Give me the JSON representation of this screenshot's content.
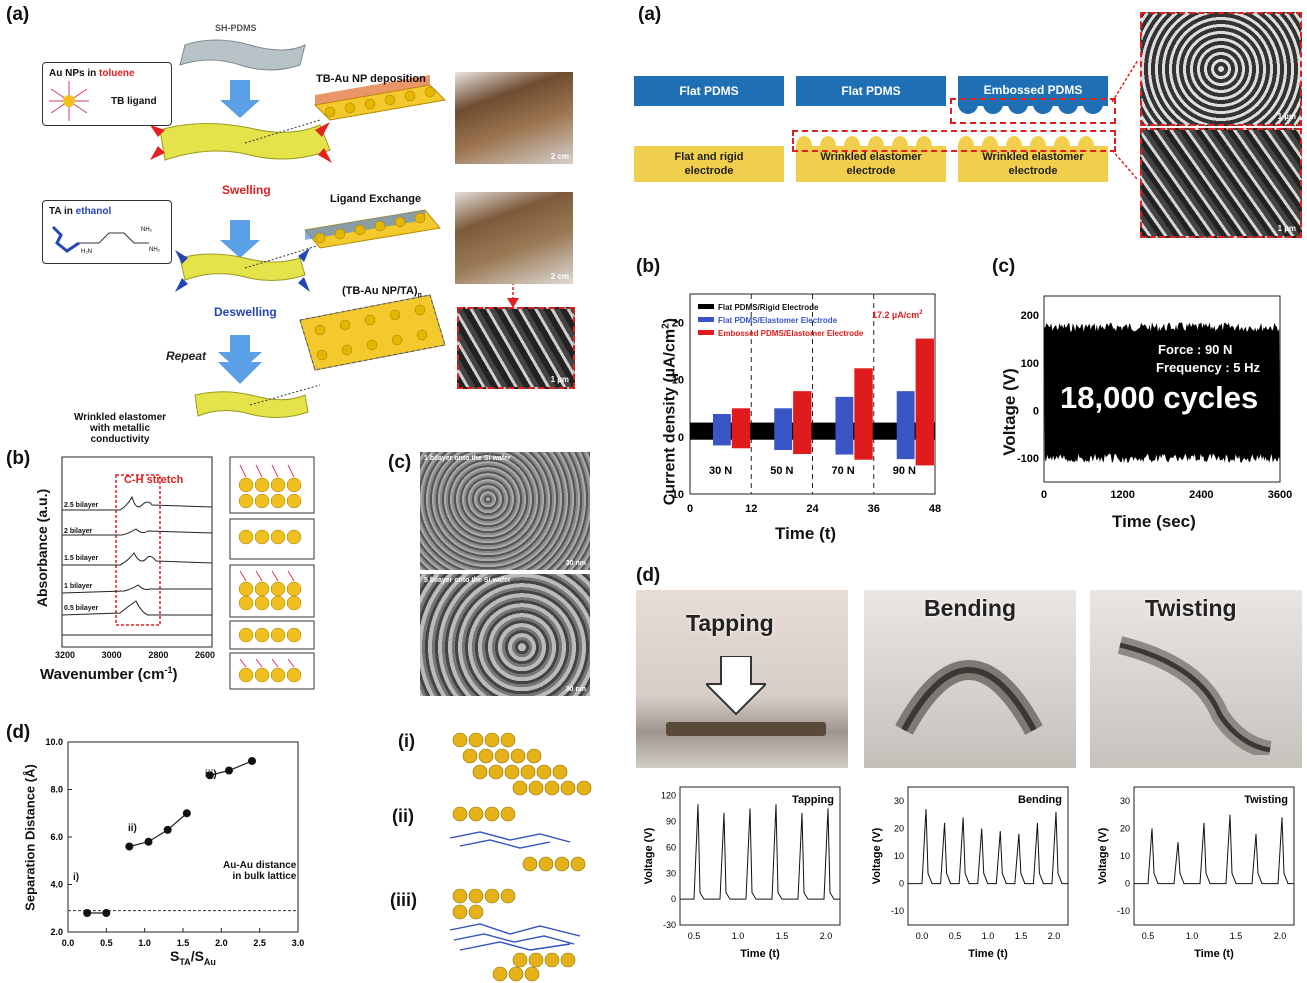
{
  "left": {
    "a": {
      "panel": "(a)",
      "sh_pdms": "SH-PDMS",
      "au_box": {
        "line1_a": "Au NPs in ",
        "line1_b": "toluene",
        "ligand": "TB ligand"
      },
      "tb_deposition": "TB-Au NP deposition",
      "swelling": "Swelling",
      "ta_box": {
        "line1_a": "TA in ",
        "line1_b": "ethanol"
      },
      "ligand_exchange": "Ligand Exchange",
      "deswelling": "Deswelling",
      "multilayer": "(TB-Au NP/TA)",
      "multilayer_sub": "n",
      "repeat": "Repeat",
      "wrinkled": "Wrinkled elastomer",
      "wrinkled2": "with metallic conductivity",
      "scale_2cm_1": "2 cm",
      "scale_2cm_2": "2 cm",
      "scale_1um": "1 µm"
    },
    "b": {
      "panel": "(b)",
      "ch_stretch": "C-H stretch",
      "ylabel": "Absorbance (a.u.)",
      "xlabel": "Wavenumber (cm",
      "xlabel_sup": "-1",
      "xlabel_end": ")",
      "ticks": [
        "3200",
        "3000",
        "2800",
        "2600"
      ],
      "bilayers": [
        "2.5 bilayer",
        "2 bilayer",
        "1.5 bilayer",
        "1 bilayer",
        "0.5 bilayer"
      ]
    },
    "c": {
      "panel": "(c)",
      "top_label": "1 bilayer onto the Si wafer",
      "bottom_label": "5 bilayer onto the Si wafer",
      "scale_top": "30 nm",
      "scale_bottom": "30 nm"
    },
    "d": {
      "panel": "(d)",
      "ylabel": "Separation Distance (Å)",
      "xlabel_main": "S",
      "xlabel_sub1": "TA",
      "xlabel_slash": "/S",
      "xlabel_sub2": "Au",
      "xticks": [
        "0.0",
        "0.5",
        "1.0",
        "1.5",
        "2.0",
        "2.5",
        "3.0"
      ],
      "yticks": [
        "2.0",
        "4.0",
        "6.0",
        "8.0",
        "10.0"
      ],
      "annot_line1": "Au-Au distance",
      "annot_line2": "in bulk lattice",
      "points_labels": [
        "i)",
        "ii)",
        "iii)"
      ],
      "lattice_labels": [
        "(i)",
        "(ii)",
        "(iii)"
      ]
    }
  },
  "right": {
    "a": {
      "panel": "(a)",
      "pdms": [
        "Flat PDMS",
        "Flat PDMS",
        "Embossed PDMS"
      ],
      "electrodes": [
        [
          "Flat and rigid",
          "electrode"
        ],
        [
          "Wrinkled elastomer",
          "electrode"
        ],
        [
          "Wrinkled elastomer",
          "electrode"
        ]
      ],
      "scale_1": "1 µm",
      "scale_2": "1 µm"
    },
    "b": {
      "panel": "(b)",
      "ylabel": "Current density (µA/cm",
      "ylabel_sup": "2",
      "ylabel_end": ")",
      "xlabel": "Time (t)",
      "legend": [
        "Flat PDMS/Rigid Electrode",
        "Flat PDMS/Elastomer Electrode",
        "Embossed PDMS/Elastomer Electrode"
      ],
      "peak": "17.2 µA/cm",
      "peak_sup": "2",
      "forces": [
        "30 N",
        "50 N",
        "70 N",
        "90 N"
      ],
      "xticks": [
        "0",
        "12",
        "24",
        "36",
        "48"
      ],
      "yticks": [
        "-10",
        "0",
        "10",
        "20"
      ]
    },
    "c": {
      "panel": "(c)",
      "ylabel": "Voltage (V)",
      "xlabel": "Time (sec)",
      "force": "Force : 90 N",
      "frequency": "Frequency : 5 Hz",
      "cycles": "18,000 cycles",
      "xticks": [
        "0",
        "1200",
        "2400",
        "3600"
      ],
      "yticks": [
        "-100",
        "0",
        "100",
        "200"
      ]
    },
    "d": {
      "panel": "(d)",
      "photos": [
        "Tapping",
        "Bending",
        "Twisting"
      ],
      "plots": [
        {
          "title": "Tapping",
          "yticks": [
            "120",
            "90",
            "60",
            "30",
            "0",
            "-30"
          ],
          "xticks": [
            "0.5",
            "1.0",
            "1.5",
            "2.0"
          ]
        },
        {
          "title": "Bending",
          "yticks": [
            "30",
            "20",
            "10",
            "0",
            "-10"
          ],
          "xticks": [
            "0.0",
            "0.5",
            "1.0",
            "1.5",
            "2.0"
          ]
        },
        {
          "title": "Twisting",
          "yticks": [
            "30",
            "20",
            "10",
            "0",
            "-10"
          ],
          "xticks": [
            "0.5",
            "1.0",
            "1.5",
            "2.0"
          ]
        }
      ],
      "ylabel": "Voltage (V)",
      "xlabel": "Time (t)"
    }
  },
  "chart_data": [
    {
      "type": "scatter",
      "title": "",
      "xlabel": "STA/SAu",
      "ylabel": "Separation Distance (Å)",
      "xlim": [
        0,
        3.0
      ],
      "ylim": [
        2.0,
        10.0
      ],
      "series": [
        {
          "x": [
            0.25,
            0.5
          ],
          "y": [
            2.8,
            2.8
          ]
        },
        {
          "x": [
            0.8,
            1.05,
            1.3,
            1.55
          ],
          "y": [
            5.6,
            5.8,
            6.3,
            7.0
          ]
        },
        {
          "x": [
            1.85,
            2.1,
            2.4
          ],
          "y": [
            8.6,
            8.8,
            9.2
          ]
        }
      ],
      "reference_line": 2.9
    },
    {
      "type": "bar",
      "title": "",
      "xlabel": "Time (t)",
      "ylabel": "Current density (µA/cm2)",
      "categories": [
        "30 N",
        "50 N",
        "70 N",
        "90 N"
      ],
      "ylim": [
        -10,
        25
      ],
      "series": [
        {
          "name": "Flat PDMS/Rigid Electrode",
          "values": [
            1.5,
            1.5,
            1.5,
            1.5
          ]
        },
        {
          "name": "Flat PDMS/Elastomer Electrode",
          "values": [
            4,
            5,
            7,
            8
          ]
        },
        {
          "name": "Embossed PDMS/Elastomer Electrode",
          "values": [
            5,
            8,
            12,
            17.2
          ]
        }
      ],
      "colors": [
        "#000000",
        "#3a55c6",
        "#e01b1b"
      ]
    },
    {
      "type": "area",
      "title": "",
      "xlabel": "Time (sec)",
      "ylabel": "Voltage (V)",
      "xlim": [
        0,
        3600
      ],
      "ylim": [
        -150,
        240
      ],
      "upper": 185,
      "lower": -110
    }
  ]
}
